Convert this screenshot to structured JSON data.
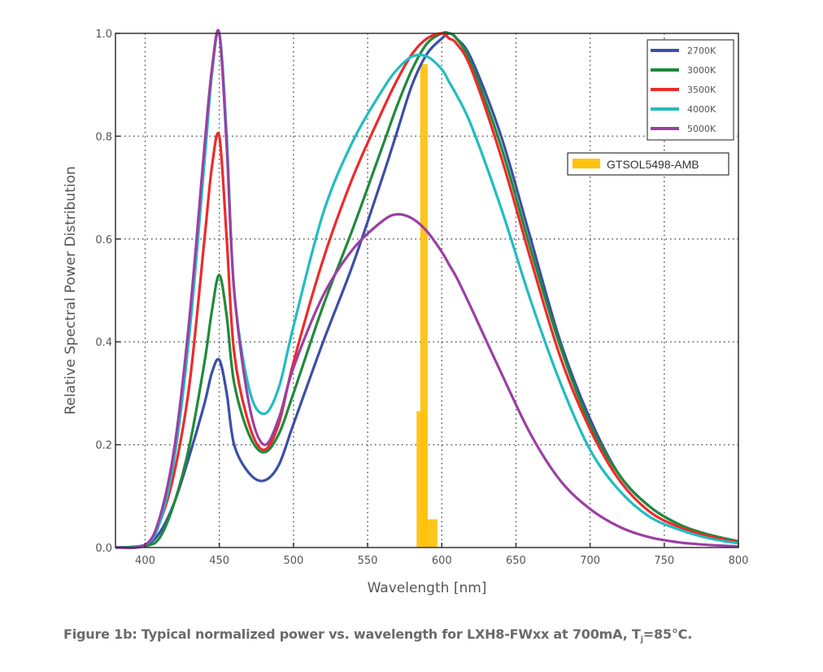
{
  "chart_data": {
    "type": "line",
    "title": "",
    "xlabel": "Wavelength [nm]",
    "ylabel": "Relative Spectral Power Distribution",
    "xlim": [
      380,
      800
    ],
    "ylim": [
      0.0,
      1.0
    ],
    "xticks": [
      400,
      450,
      500,
      550,
      600,
      650,
      700,
      750,
      800
    ],
    "xtick_labels": [
      "400",
      "450",
      "500",
      "550",
      "600",
      "650",
      "700",
      "750",
      "800"
    ],
    "yticks": [
      0.0,
      0.2,
      0.4,
      0.6,
      0.8,
      1.0
    ],
    "ytick_labels": [
      "0.0",
      "0.2",
      "0.4",
      "0.6",
      "0.8",
      "1.0"
    ],
    "grid": true,
    "legend_placement": "top-right",
    "x": [
      380,
      400,
      410,
      420,
      430,
      440,
      445,
      450,
      455,
      460,
      470,
      480,
      490,
      500,
      520,
      540,
      560,
      570,
      580,
      590,
      600,
      605,
      610,
      620,
      640,
      660,
      680,
      700,
      720,
      740,
      760,
      780,
      800
    ],
    "series": [
      {
        "name": "2700K",
        "color": "#3a4fa8",
        "values": [
          0.0,
          0.005,
          0.03,
          0.09,
          0.18,
          0.28,
          0.34,
          0.365,
          0.3,
          0.2,
          0.145,
          0.13,
          0.16,
          0.24,
          0.4,
          0.55,
          0.72,
          0.81,
          0.9,
          0.96,
          0.99,
          1.0,
          0.99,
          0.95,
          0.8,
          0.6,
          0.4,
          0.25,
          0.14,
          0.08,
          0.045,
          0.025,
          0.012
        ]
      },
      {
        "name": "3000K",
        "color": "#1f8a3a",
        "values": [
          0.0,
          0.003,
          0.02,
          0.09,
          0.2,
          0.36,
          0.46,
          0.53,
          0.45,
          0.32,
          0.22,
          0.185,
          0.22,
          0.3,
          0.47,
          0.62,
          0.78,
          0.86,
          0.93,
          0.98,
          1.0,
          1.0,
          0.99,
          0.94,
          0.78,
          0.58,
          0.39,
          0.24,
          0.14,
          0.08,
          0.045,
          0.025,
          0.012
        ]
      },
      {
        "name": "3500K",
        "color": "#ee2a2a",
        "values": [
          0.0,
          0.005,
          0.05,
          0.15,
          0.32,
          0.6,
          0.74,
          0.8,
          0.6,
          0.38,
          0.24,
          0.19,
          0.24,
          0.36,
          0.56,
          0.72,
          0.85,
          0.91,
          0.96,
          0.99,
          1.0,
          0.99,
          0.98,
          0.93,
          0.76,
          0.56,
          0.37,
          0.23,
          0.13,
          0.07,
          0.04,
          0.022,
          0.01
        ]
      },
      {
        "name": "4000K",
        "color": "#22bcc0",
        "values": [
          0.0,
          0.005,
          0.05,
          0.18,
          0.42,
          0.75,
          0.92,
          1.0,
          0.8,
          0.5,
          0.31,
          0.26,
          0.31,
          0.43,
          0.65,
          0.79,
          0.89,
          0.93,
          0.955,
          0.955,
          0.93,
          0.905,
          0.88,
          0.82,
          0.66,
          0.48,
          0.32,
          0.19,
          0.11,
          0.06,
          0.035,
          0.018,
          0.008
        ]
      },
      {
        "name": "5000K",
        "color": "#9b3fa3",
        "values": [
          0.0,
          0.005,
          0.06,
          0.2,
          0.45,
          0.78,
          0.93,
          1.0,
          0.78,
          0.5,
          0.28,
          0.2,
          0.25,
          0.35,
          0.49,
          0.58,
          0.635,
          0.648,
          0.64,
          0.615,
          0.575,
          0.55,
          0.525,
          0.465,
          0.34,
          0.22,
          0.13,
          0.075,
          0.04,
          0.02,
          0.01,
          0.005,
          0.002
        ]
      }
    ],
    "overlay": {
      "name": "GTSOL5498-AMB",
      "type": "bar",
      "color": "#ffc20e",
      "segments": [
        {
          "x0": 583,
          "x1": 590,
          "y": 0.265
        },
        {
          "x0": 585.5,
          "x1": 590.5,
          "y": 0.94
        },
        {
          "x0": 590,
          "x1": 597,
          "y": 0.055
        }
      ]
    }
  },
  "caption": {
    "text_main": "Figure 1b: Typical normalized power vs. wavelength for LXH8-FWxx at 700mA, T",
    "subscript": "j",
    "text_end": "=85°C."
  }
}
